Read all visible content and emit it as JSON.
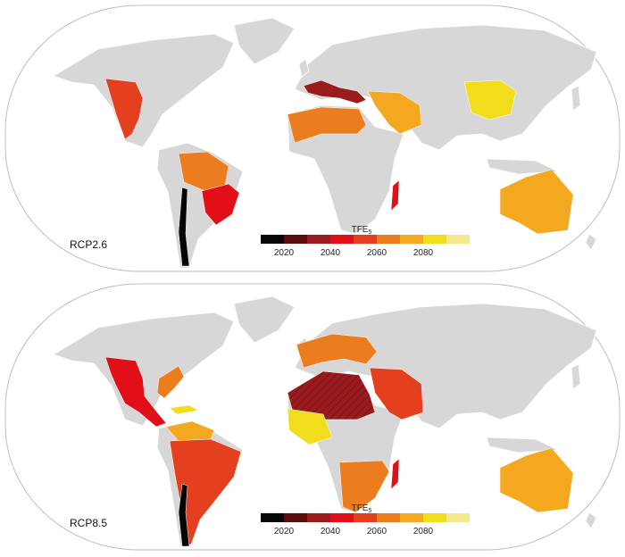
{
  "legend": {
    "title": "TFE",
    "title_subscript": "5",
    "ticks": [
      "2020",
      "2040",
      "2060",
      "2080"
    ],
    "colors": [
      "#050505",
      "#5a0c0c",
      "#9a1c1e",
      "#e30f18",
      "#e4401f",
      "#ec7d1f",
      "#f4a820",
      "#f1dd1c",
      "#f4e98c"
    ]
  },
  "land_color": "#d7d7d7",
  "panels": [
    {
      "label": "RCP2.6",
      "regions": [
        {
          "name": "Mexico and western US",
          "color": "#e4401f"
        },
        {
          "name": "Amazon",
          "color": "#ec7d1f"
        },
        {
          "name": "Southeastern South America",
          "color": "#e30f18"
        },
        {
          "name": "Chile",
          "color": "#050505"
        },
        {
          "name": "North Africa",
          "color": "#ec7d1f"
        },
        {
          "name": "Mediterranean",
          "color": "#9a1c1e"
        },
        {
          "name": "Middle East",
          "color": "#f4a820"
        },
        {
          "name": "China",
          "color": "#f1dd1c"
        },
        {
          "name": "Madagascar",
          "color": "#e30f18"
        },
        {
          "name": "Australia",
          "color": "#f4a820"
        }
      ]
    },
    {
      "label": "RCP8.5",
      "regions": [
        {
          "name": "Mexico and Central America",
          "color": "#e30f18"
        },
        {
          "name": "Southeastern US",
          "color": "#ec7d1f"
        },
        {
          "name": "Caribbean",
          "color": "#f1dd1c"
        },
        {
          "name": "Northern South America",
          "color": "#f4a820"
        },
        {
          "name": "South America",
          "color": "#e4401f"
        },
        {
          "name": "Chile",
          "color": "#050505"
        },
        {
          "name": "Europe",
          "color": "#ec7d1f"
        },
        {
          "name": "North Africa",
          "color": "#9a1c1e"
        },
        {
          "name": "Middle East",
          "color": "#e4401f"
        },
        {
          "name": "West Africa",
          "color": "#f1dd1c"
        },
        {
          "name": "Southern Africa",
          "color": "#ec7d1f"
        },
        {
          "name": "Madagascar",
          "color": "#e30f18"
        },
        {
          "name": "Australia",
          "color": "#f4a820"
        }
      ]
    }
  ]
}
